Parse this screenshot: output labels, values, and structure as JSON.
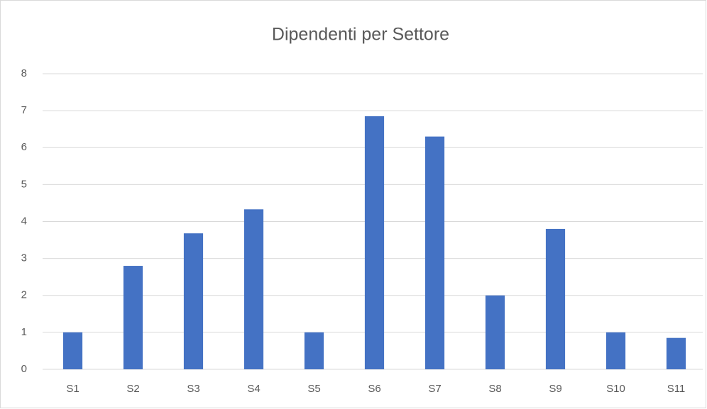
{
  "chart_data": {
    "type": "bar",
    "title": "Dipendenti per Settore",
    "categories": [
      "S1",
      "S2",
      "S3",
      "S4",
      "S5",
      "S6",
      "S7",
      "S8",
      "S9",
      "S10",
      "S11"
    ],
    "values": [
      1,
      2.8,
      3.68,
      4.33,
      1,
      6.85,
      6.3,
      2,
      3.8,
      1,
      0.85
    ],
    "color": "#4472c4",
    "ylim": [
      0,
      8
    ],
    "yticks": [
      0,
      1,
      2,
      3,
      4,
      5,
      6,
      7,
      8
    ],
    "grid": true
  }
}
